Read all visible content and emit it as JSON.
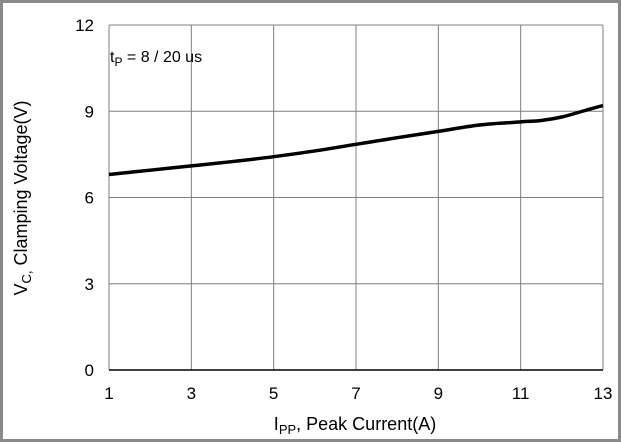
{
  "chart_data": {
    "type": "line",
    "xlabel": {
      "main": "I",
      "sub": "PP",
      "rest": ", Peak Current(A)"
    },
    "ylabel": {
      "main": "V",
      "sub": "C,",
      "rest": " Clamping Voltage(V)"
    },
    "annotation": {
      "main": "t",
      "sub": "P",
      "rest": " = 8 / 20 us"
    },
    "xlim": [
      1,
      13
    ],
    "ylim": [
      0,
      12
    ],
    "x_ticks": [
      1,
      3,
      5,
      7,
      9,
      11,
      13
    ],
    "y_ticks": [
      0,
      3,
      6,
      9,
      12
    ],
    "x_tick_labels": [
      "1",
      "3",
      "5",
      "7",
      "9",
      "11",
      "13"
    ],
    "y_tick_labels": [
      "0",
      "3",
      "6",
      "9",
      "12"
    ],
    "grid": true,
    "series": [
      {
        "color": "#000000",
        "x": [
          1,
          2,
          3,
          4,
          5,
          6,
          7,
          8,
          9,
          10,
          11,
          11.5,
          12,
          12.5,
          13
        ],
        "y": [
          6.8,
          6.95,
          7.1,
          7.25,
          7.42,
          7.62,
          7.85,
          8.08,
          8.3,
          8.52,
          8.63,
          8.68,
          8.8,
          9.0,
          9.2
        ]
      }
    ]
  }
}
